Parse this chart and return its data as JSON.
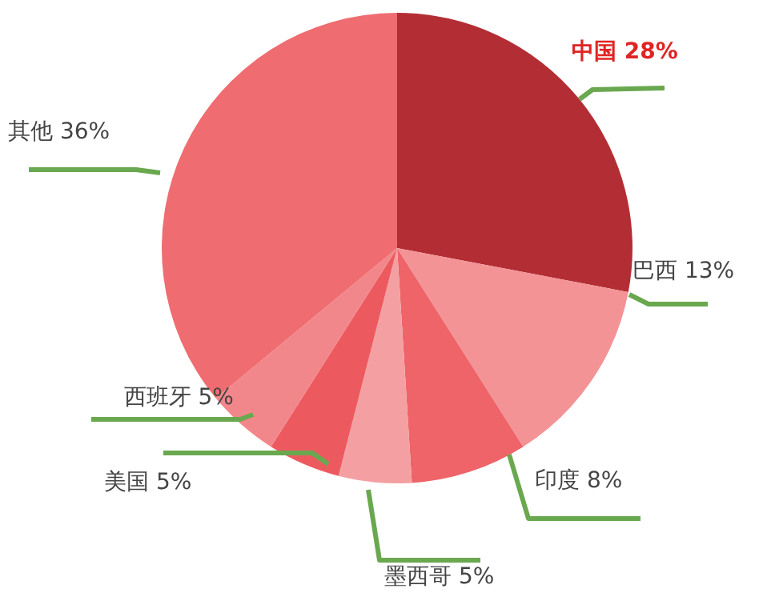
{
  "chart_data": {
    "type": "pie",
    "categories": [
      "中国",
      "巴西",
      "印度",
      "墨西哥",
      "美国",
      "西班牙",
      "其他"
    ],
    "values": [
      28,
      13,
      8,
      5,
      5,
      5,
      36
    ],
    "value_labels": [
      "28%",
      "13%",
      "8%",
      "5%",
      "5%",
      "5%",
      "36%"
    ],
    "colors": [
      "#b32e34",
      "#f39396",
      "#ee6469",
      "#f4a0a2",
      "#ec5a60",
      "#f2878b",
      "#ef6c70"
    ],
    "legend": false
  }
}
